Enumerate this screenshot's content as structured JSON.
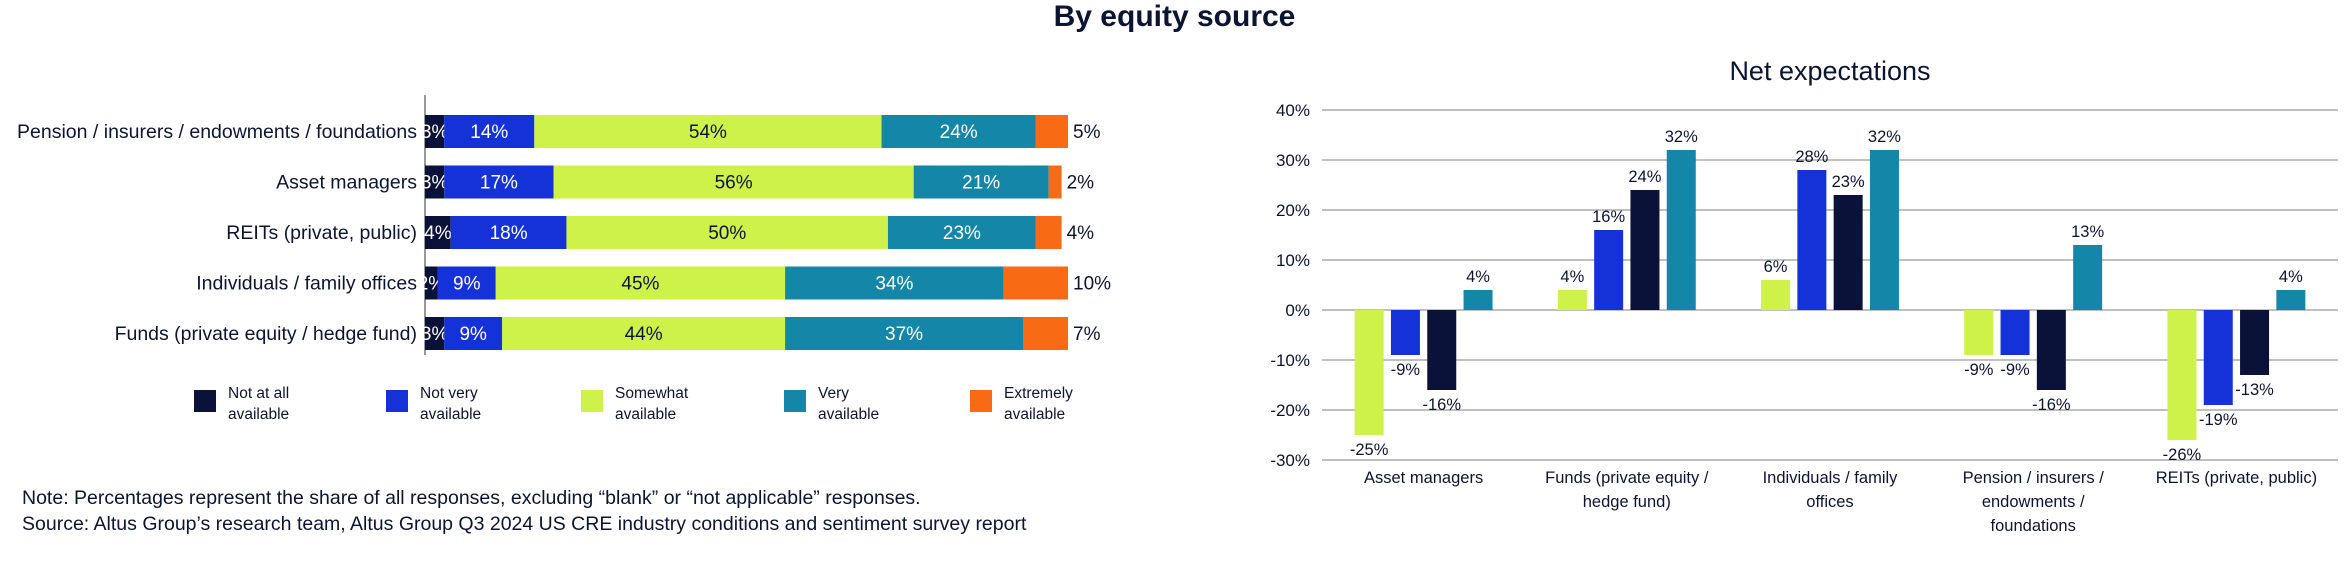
{
  "title": "By equity source",
  "note": "Note: Percentages represent the share of all responses, excluding “blank” or “not applicable” responses.",
  "source": "Source: Altus Group’s research team, Altus Group Q3 2024 US CRE industry conditions and sentiment survey report",
  "colors": {
    "not_at_all": "#0b1239",
    "not_very": "#1432d8",
    "somewhat": "#cff24a",
    "very": "#1486a8",
    "extremely": "#f86a14"
  },
  "chart_data": [
    {
      "type": "bar",
      "orientation": "horizontal",
      "stacked": true,
      "categories": [
        "Pension / insurers / endowments / foundations",
        "Asset managers",
        "REITs (private, public)",
        "Individuals / family offices",
        "Funds (private equity / hedge fund)"
      ],
      "series": [
        {
          "name": "Not at all available",
          "key": "not_at_all",
          "values": [
            3,
            3,
            4,
            2,
            3
          ]
        },
        {
          "name": "Not very available",
          "key": "not_very",
          "values": [
            14,
            17,
            18,
            9,
            9
          ]
        },
        {
          "name": "Somewhat available",
          "key": "somewhat",
          "values": [
            54,
            56,
            50,
            45,
            44
          ]
        },
        {
          "name": "Very available",
          "key": "very",
          "values": [
            24,
            21,
            23,
            34,
            37
          ]
        },
        {
          "name": "Extremely available",
          "key": "extremely",
          "values": [
            5,
            2,
            4,
            10,
            7
          ]
        }
      ],
      "legend": [
        {
          "line1": "Not at all",
          "line2": "available",
          "key": "not_at_all"
        },
        {
          "line1": "Not very",
          "line2": "available",
          "key": "not_very"
        },
        {
          "line1": "Somewhat",
          "line2": "available",
          "key": "somewhat"
        },
        {
          "line1": "Very",
          "line2": "available",
          "key": "very"
        },
        {
          "line1": "Extremely",
          "line2": "available",
          "key": "extremely"
        }
      ],
      "legend_position": "bottom",
      "xlim": [
        0,
        100
      ]
    },
    {
      "type": "bar",
      "orientation": "vertical",
      "title": "Net expectations",
      "categories": [
        [
          "Asset managers"
        ],
        [
          "Funds (private equity /",
          "hedge fund)"
        ],
        [
          "Individuals / family",
          "offices"
        ],
        [
          "Pension / insurers /",
          "endowments /",
          "foundations"
        ],
        [
          "REITs (private, public)"
        ]
      ],
      "series": [
        {
          "key": "somewhat",
          "values": [
            -25,
            4,
            6,
            -9,
            -26
          ]
        },
        {
          "key": "not_very",
          "values": [
            -9,
            16,
            28,
            -9,
            -19
          ]
        },
        {
          "key": "not_at_all",
          "values": [
            -16,
            24,
            23,
            -16,
            -13
          ]
        },
        {
          "key": "very",
          "values": [
            4,
            32,
            32,
            13,
            4
          ]
        }
      ],
      "ylim": [
        -30,
        40
      ],
      "yticks": [
        40,
        30,
        20,
        10,
        0,
        -10,
        -20,
        -30
      ],
      "ytick_labels": [
        "40%",
        "30%",
        "20%",
        "10%",
        "0%",
        "-10%",
        "-20%",
        "-30%"
      ],
      "grid": true
    }
  ]
}
